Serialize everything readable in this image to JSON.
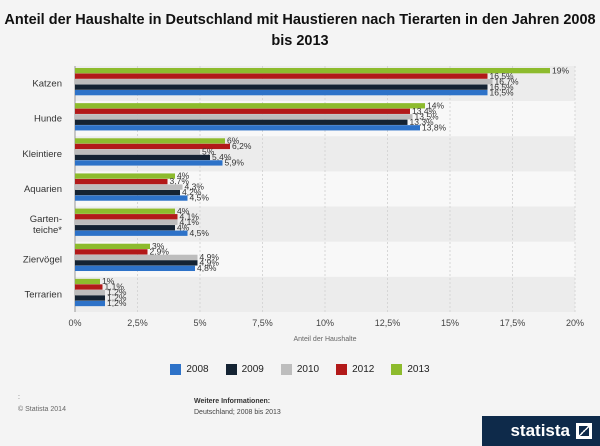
{
  "chart_data": {
    "type": "bar",
    "orientation": "horizontal",
    "title": "Anteil der Haushalte in Deutschland mit Haustieren nach Tierarten in den Jahren 2008 bis 2013",
    "xlabel": "Anteil der Haushalte",
    "ylabel": "",
    "xlim": [
      0,
      20
    ],
    "xticks": [
      "0%",
      "2,5%",
      "5%",
      "7,5%",
      "10%",
      "12,5%",
      "15%",
      "17,5%",
      "20%"
    ],
    "grid": true,
    "categories": [
      "Katzen",
      "Hunde",
      "Kleintiere",
      "Aquarien",
      "Garten-\nteiche*",
      "Ziervögel",
      "Terrarien"
    ],
    "series": [
      {
        "name": "2013",
        "color": "#8dbb2d",
        "values": [
          19,
          14,
          6,
          4,
          4,
          3,
          1
        ],
        "labels": [
          "19%",
          "14%",
          "6%",
          "4%",
          "4%",
          "3%",
          "1%"
        ]
      },
      {
        "name": "2012",
        "color": "#b21919",
        "values": [
          16.5,
          13.4,
          6.2,
          3.7,
          4.1,
          2.9,
          1.1
        ],
        "labels": [
          "16,5%",
          "13,4%",
          "6,2%",
          "3,7%",
          "4,1%",
          "2,9%",
          "1,1%"
        ]
      },
      {
        "name": "2010",
        "color": "#bdbdbd",
        "values": [
          16.7,
          13.5,
          5,
          4.3,
          4.1,
          4.9,
          1.2
        ],
        "labels": [
          "16,7%",
          "13,5%",
          "5%",
          "4,3%",
          "4,1%",
          "4,9%",
          "1,2%"
        ]
      },
      {
        "name": "2009",
        "color": "#142333",
        "values": [
          16.5,
          13.3,
          5.4,
          4.2,
          4,
          4.9,
          1.2
        ],
        "labels": [
          "16,5%",
          "13,3%",
          "5,4%",
          "4,2%",
          "4%",
          "4,9%",
          "1,2%"
        ]
      },
      {
        "name": "2008",
        "color": "#2d72c8",
        "values": [
          16.5,
          13.8,
          5.9,
          4.5,
          4.5,
          4.8,
          1.2
        ],
        "labels": [
          "16,5%",
          "13,8%",
          "5,9%",
          "4,5%",
          "4,5%",
          "4,8%",
          "1,2%"
        ]
      }
    ],
    "legend": {
      "position": "bottom",
      "order": [
        "2008",
        "2009",
        "2010",
        "2012",
        "2013"
      ]
    }
  },
  "footer": {
    "note": ":",
    "copyright": "© Statista 2014",
    "info_heading": "Weitere Informationen:",
    "info_text": "Deutschland; 2008 bis 2013"
  },
  "brand": {
    "name": "statista"
  }
}
